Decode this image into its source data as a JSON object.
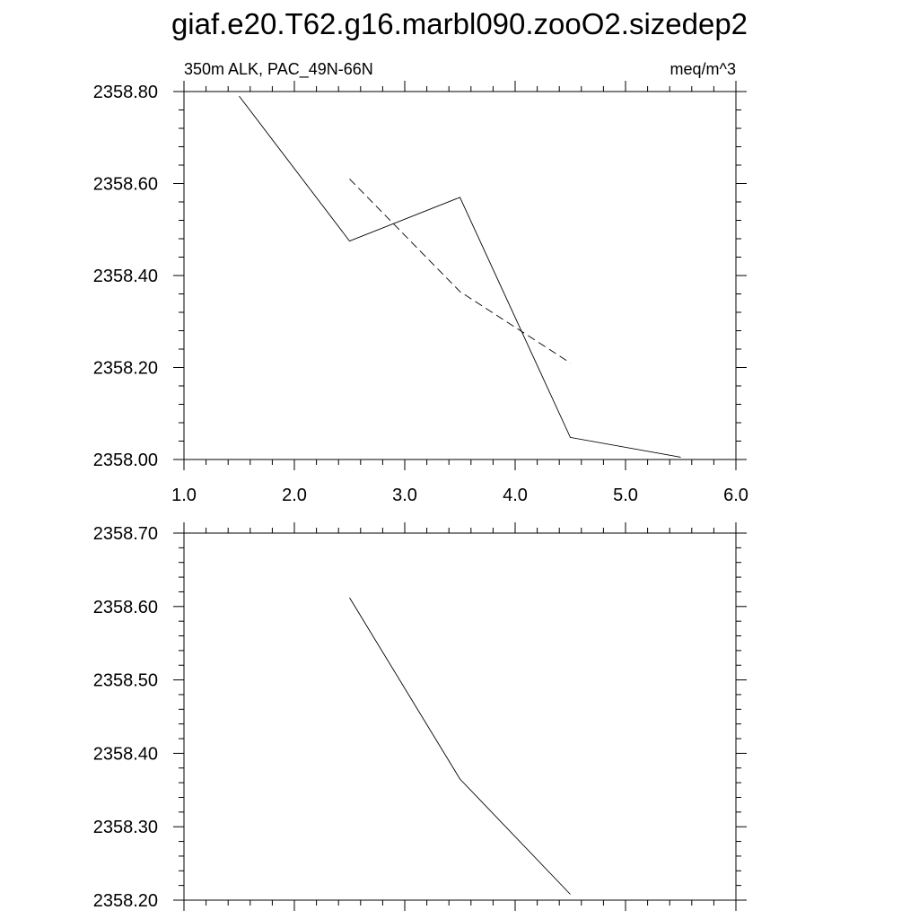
{
  "title": "giaf.e20.T62.g16.marbl090.zooO2.sizedep2",
  "chart_data": [
    {
      "type": "line",
      "left_label": "350m ALK, PAC_49N-66N",
      "right_label": "meq/m^3",
      "xlim": [
        1.0,
        6.0
      ],
      "ylim": [
        2358.0,
        2358.8
      ],
      "x_ticks": [
        1.0,
        2.0,
        3.0,
        4.0,
        5.0,
        6.0
      ],
      "x_tick_labels": [
        "1.0",
        "2.0",
        "3.0",
        "4.0",
        "5.0",
        "6.0"
      ],
      "y_ticks": [
        2358.0,
        2358.2,
        2358.4,
        2358.6,
        2358.8
      ],
      "y_tick_labels": [
        "2358.00",
        "2358.20",
        "2358.40",
        "2358.60",
        "2358.80"
      ],
      "series": [
        {
          "style": "solid",
          "x": [
            1.5,
            2.5,
            3.5,
            4.5,
            5.5
          ],
          "values": [
            2358.79,
            2358.475,
            2358.57,
            2358.048,
            2358.005
          ]
        },
        {
          "style": "dashed",
          "x": [
            2.5,
            3.5,
            4.5
          ],
          "values": [
            2358.61,
            2358.365,
            2358.21
          ]
        }
      ]
    },
    {
      "type": "line",
      "xlim": [
        1.0,
        6.0
      ],
      "ylim": [
        2358.2,
        2358.7
      ],
      "x_ticks": [
        1.0,
        2.0,
        3.0,
        4.0,
        5.0,
        6.0
      ],
      "y_ticks": [
        2358.2,
        2358.3,
        2358.4,
        2358.5,
        2358.6,
        2358.7
      ],
      "y_tick_labels": [
        "2358.20",
        "2358.30",
        "2358.40",
        "2358.50",
        "2358.60",
        "2358.70"
      ],
      "series": [
        {
          "style": "solid",
          "x": [
            2.5,
            3.5,
            4.5
          ],
          "values": [
            2358.612,
            2358.365,
            2358.208
          ]
        }
      ]
    }
  ]
}
